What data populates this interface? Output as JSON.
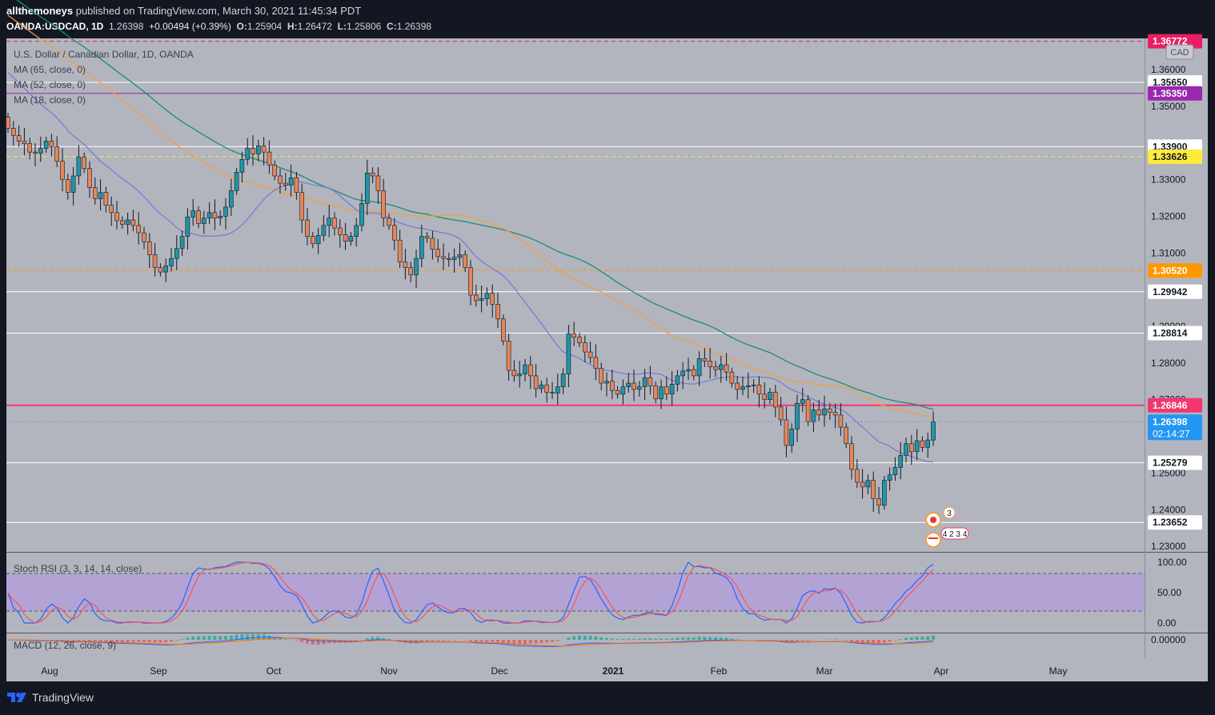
{
  "header": {
    "author": "allthemoneys",
    "published_text": "published on TradingView.com, March 30, 2021 11:45:34 PDT",
    "symbol": "OANDA:USDCAD, 1D",
    "last": "1.26398",
    "change": "+0.00494 (+0.39%)",
    "open_label": "O:",
    "open": "1.25904",
    "high_label": "H:",
    "high": "1.26472",
    "low_label": "L:",
    "low": "1.25806",
    "close_label": "C:",
    "close": "1.26398"
  },
  "legend": {
    "title": "U.S. Dollar / Canadian Dollar, 1D, OANDA",
    "ma1": "MA (65, close, 0)",
    "ma2": "MA (52, close, 0)",
    "ma3": "MA (18, close, 0)",
    "currency_badge": "CAD"
  },
  "indicators": {
    "stoch_label": "Stoch RSI (3, 3, 14, 14, close)",
    "macd_label": "MACD (12, 26, close, 9)",
    "stoch_ticks": [
      "100.00",
      "50.00",
      "0.00"
    ],
    "macd_tick": "0.00000"
  },
  "event_badges": {
    "upper": "3",
    "lower": "4 2 3 4"
  },
  "footer": {
    "brand": "TradingView"
  },
  "colors": {
    "background": "#b2b5be",
    "up": "#2196a8",
    "down": "#e4875a",
    "ma65": "#1c8c72",
    "ma52": "#f0a040",
    "ma18": "#7b7bd6",
    "stoch_k": "#2962ff",
    "stoch_d": "#f7525f",
    "stoch_band": "#b39ddb"
  },
  "chart_data": {
    "type": "candlestick",
    "title": "U.S. Dollar / Canadian Dollar, 1D, OANDA",
    "x_ticks": [
      "Aug",
      "Sep",
      "Oct",
      "Nov",
      "Dec",
      "2021",
      "Feb",
      "Mar",
      "Apr",
      "May"
    ],
    "y_ticks": [
      "1.36000",
      "1.35000",
      "1.34000",
      "1.33000",
      "1.32000",
      "1.31000",
      "1.30000",
      "1.29000",
      "1.28000",
      "1.27000",
      "1.25000",
      "1.24000",
      "1.23000"
    ],
    "ylim": [
      1.2285,
      1.3685
    ],
    "levels": [
      {
        "value": 1.3677,
        "label": "1.36772",
        "style": "dashed",
        "color": "#e91e63"
      },
      {
        "value": 1.3565,
        "label": "1.35650",
        "style": "solid",
        "color": "#ffffff"
      },
      {
        "value": 1.3535,
        "label": "1.35350",
        "style": "solid",
        "color": "#9c27b0"
      },
      {
        "value": 1.339,
        "label": "1.33900",
        "style": "solid",
        "color": "#ffffff"
      },
      {
        "value": 1.33626,
        "label": "1.33626",
        "style": "dashed",
        "color": "#ffeb3b"
      },
      {
        "value": 1.3052,
        "label": "1.30520",
        "style": "dashed",
        "color": "#ff9800"
      },
      {
        "value": 1.29942,
        "label": "1.29942",
        "style": "solid",
        "color": "#ffffff"
      },
      {
        "value": 1.28814,
        "label": "1.28814",
        "style": "solid",
        "color": "#ffffff"
      },
      {
        "value": 1.26846,
        "label": "1.26846",
        "style": "solid",
        "color": "#f23670"
      },
      {
        "value": 1.25279,
        "label": "1.25279",
        "style": "solid",
        "color": "#ffffff"
      },
      {
        "value": 1.23652,
        "label": "1.23652",
        "style": "solid",
        "color": "#ffffff"
      }
    ],
    "last_price": {
      "value": 1.26398,
      "label": "1.26398",
      "countdown": "02:14:27"
    },
    "closes": [
      1.344,
      1.342,
      1.3405,
      1.3398,
      1.3375,
      1.3372,
      1.3385,
      1.3405,
      1.339,
      1.335,
      1.33,
      1.3265,
      1.331,
      1.3362,
      1.333,
      1.3278,
      1.3248,
      1.3265,
      1.323,
      1.321,
      1.3188,
      1.3178,
      1.319,
      1.3175,
      1.3155,
      1.313,
      1.3095,
      1.306,
      1.3048,
      1.3065,
      1.3085,
      1.3112,
      1.3145,
      1.3198,
      1.3215,
      1.318,
      1.3195,
      1.321,
      1.3195,
      1.32,
      1.3225,
      1.327,
      1.332,
      1.3355,
      1.3385,
      1.337,
      1.3392,
      1.3375,
      1.334,
      1.331,
      1.329,
      1.3285,
      1.3305,
      1.3265,
      1.319,
      1.3145,
      1.3125,
      1.3148,
      1.3175,
      1.3195,
      1.3168,
      1.315,
      1.3132,
      1.3145,
      1.3175,
      1.3235,
      1.3318,
      1.331,
      1.327,
      1.3195,
      1.3175,
      1.3135,
      1.3075,
      1.306,
      1.304,
      1.3085,
      1.3145,
      1.314,
      1.311,
      1.309,
      1.3085,
      1.3082,
      1.3088,
      1.3095,
      1.306,
      1.2985,
      1.297,
      1.2975,
      1.299,
      1.296,
      1.292,
      1.286,
      1.278,
      1.2765,
      1.277,
      1.2795,
      1.2765,
      1.273,
      1.274,
      1.272,
      1.2718,
      1.2735,
      1.277,
      1.288,
      1.287,
      1.2855,
      1.283,
      1.2815,
      1.2785,
      1.2745,
      1.275,
      1.2725,
      1.2715,
      1.2735,
      1.2745,
      1.2728,
      1.2735,
      1.276,
      1.2738,
      1.2702,
      1.2735,
      1.2715,
      1.2742,
      1.2765,
      1.2778,
      1.2782,
      1.2765,
      1.2812,
      1.2805,
      1.279,
      1.2782,
      1.2795,
      1.2775,
      1.2745,
      1.2728,
      1.2735,
      1.2738,
      1.274,
      1.2715,
      1.27,
      1.272,
      1.268,
      1.2645,
      1.2575,
      1.262,
      1.269,
      1.27,
      1.264,
      1.2672,
      1.2658,
      1.2675,
      1.2665,
      1.2658,
      1.2625,
      1.258,
      1.251,
      1.2475,
      1.2462,
      1.248,
      1.243,
      1.2412,
      1.248,
      1.2495,
      1.2515,
      1.2548,
      1.258,
      1.2558,
      1.2588,
      1.257,
      1.259,
      1.264
    ],
    "ma_lines": [
      {
        "name": "MA (65, close, 0)",
        "period": 65
      },
      {
        "name": "MA (52, close, 0)",
        "period": 52
      },
      {
        "name": "MA (18, close, 0)",
        "period": 18
      }
    ],
    "stoch_rsi": {
      "ylim": [
        0,
        100
      ],
      "bands": [
        80,
        20
      ]
    },
    "macd": {
      "zero": 0
    }
  }
}
